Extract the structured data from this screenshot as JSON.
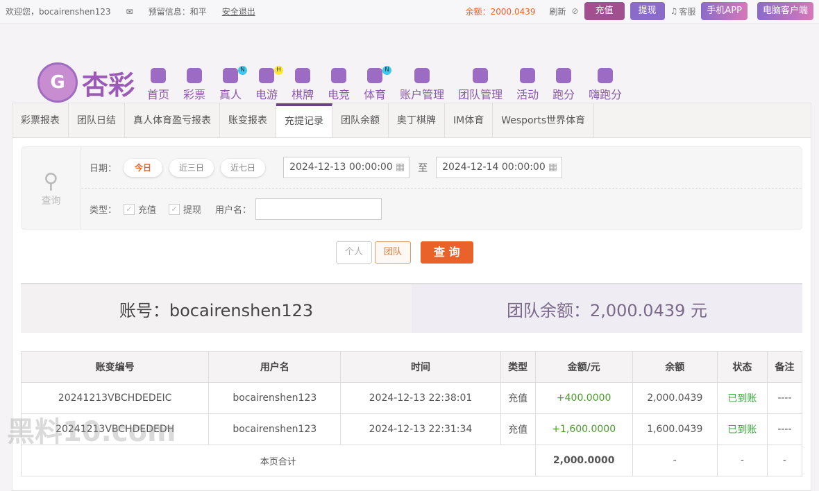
{
  "topbar": {
    "welcome": "欢迎您，bocairenshen123",
    "reserved": "预留信息：和平",
    "logout": "安全退出",
    "balance": "余额：2000.0439",
    "refresh": "刷新",
    "deposit": "充值",
    "withdraw": "提现",
    "service": "客服",
    "mobile_app": "手机APP",
    "pc_client": "电脑客户端"
  },
  "logo": {
    "text": "杏彩"
  },
  "nav": [
    {
      "label": "首页"
    },
    {
      "label": "彩票"
    },
    {
      "label": "真人",
      "badge": "N"
    },
    {
      "label": "电游",
      "badge": "H"
    },
    {
      "label": "棋牌"
    },
    {
      "label": "电竞"
    },
    {
      "label": "体育",
      "badge": "N"
    },
    {
      "label": "账户管理"
    },
    {
      "label": "团队管理"
    },
    {
      "label": "活动"
    },
    {
      "label": "跑分"
    },
    {
      "label": "嗨跑分"
    }
  ],
  "tabs": [
    "彩票报表",
    "团队日结",
    "真人体育盈亏报表",
    "账变报表",
    "充提记录",
    "团队余额",
    "奥丁棋牌",
    "IM体育",
    "Wesports世界体育"
  ],
  "search": {
    "title": "查询",
    "date_label": "日期：",
    "today": "今日",
    "three_days": "近三日",
    "seven_days": "近七日",
    "start": "2024-12-13 00:00:00",
    "to": "至",
    "end": "2024-12-14 00:00:00",
    "type_label": "类型：",
    "deposit": "充值",
    "withdraw": "提现",
    "username_label": "用户名：",
    "username": "",
    "personal": "个人",
    "team": "团队",
    "query": "查 询"
  },
  "summary": {
    "account": "账号：bocairenshen123",
    "team_balance": "团队余额：2,000.0439 元"
  },
  "table": {
    "headers": [
      "账变编号",
      "用户名",
      "时间",
      "类型",
      "金额/元",
      "余额",
      "状态",
      "备注"
    ],
    "rows": [
      [
        "20241213VBCHDEDEIC",
        "bocairenshen123",
        "2024-12-13 22:38:01",
        "充值",
        "+400.0000",
        "2,000.0439",
        "已到账",
        "----"
      ],
      [
        "20241213VBCHDEDEDH",
        "bocairenshen123",
        "2024-12-13 22:31:34",
        "充值",
        "+1,600.0000",
        "1,600.0439",
        "已到账",
        "----"
      ]
    ],
    "total_label": "本页合计",
    "total_amount": "2,000.0000",
    "total_balance": "-",
    "total_status": "-",
    "total_note": "-"
  },
  "watermark": "黑料10.com",
  "colors": {
    "accent": "#6a4486",
    "orange": "#e8622a",
    "green": "#4caf50"
  }
}
